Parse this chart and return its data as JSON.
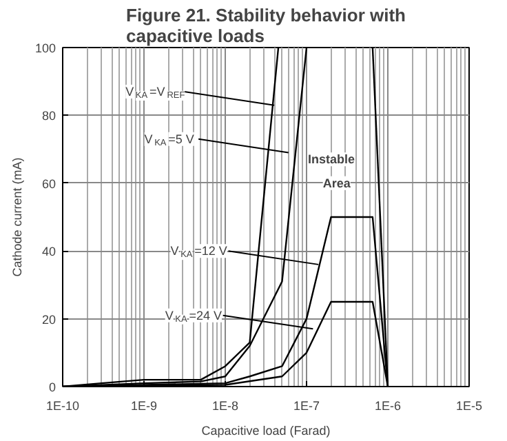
{
  "chart_data": {
    "type": "line",
    "title": "Figure 21. Stability behavior with capacitive loads",
    "xlabel": "Capacitive load (Farad)",
    "ylabel": "Cathode current (mA)",
    "log": "x",
    "grid": true,
    "xlim": [
      1e-10,
      1e-05
    ],
    "ylim": [
      0,
      100
    ],
    "xticks": [
      {
        "value": 1e-10,
        "label": "1E-10"
      },
      {
        "value": 1e-09,
        "label": "1E-9"
      },
      {
        "value": 1e-08,
        "label": "1E-8"
      },
      {
        "value": 1e-07,
        "label": "1E-7"
      },
      {
        "value": 1e-06,
        "label": "1E-6"
      },
      {
        "value": 1e-05,
        "label": "1E-5"
      }
    ],
    "yticks": [
      0,
      20,
      40,
      60,
      80,
      100
    ],
    "series": [
      {
        "color": "#000000",
        "x": [
          1e-10,
          3e-10,
          1e-09,
          5e-09,
          1e-08,
          2e-08,
          4.5e-08
        ],
        "values": [
          0,
          1,
          2,
          2,
          6,
          13,
          100
        ]
      },
      {
        "color": "#000000",
        "x": [
          1e-10,
          1e-09,
          5e-09,
          1e-08,
          2e-08,
          5e-08,
          1e-07
        ],
        "values": [
          0,
          1,
          1.5,
          3,
          12,
          31,
          100
        ]
      },
      {
        "color": "#000000",
        "x": [
          6.5e-07,
          1e-06
        ],
        "values": [
          100,
          0
        ]
      },
      {
        "color": "#000000",
        "x": [
          1e-10,
          1e-08,
          2e-08,
          5e-08,
          1e-07,
          2e-07,
          6.5e-07,
          1e-06
        ],
        "values": [
          0,
          1,
          3,
          6,
          20,
          50,
          50,
          0
        ]
      },
      {
        "color": "#000000",
        "x": [
          1e-10,
          1e-08,
          5e-08,
          1e-07,
          2e-07,
          6.5e-07,
          1e-06
        ],
        "values": [
          0,
          0.5,
          3,
          10,
          25,
          25,
          0
        ]
      }
    ],
    "annotations": [
      {
        "text": "V$_{KA}$=V$_{REF}$",
        "x": 4e-08,
        "y": 83
      },
      {
        "text": "V$_{KA}$=5 V",
        "x": 6e-08,
        "y": 69
      },
      {
        "text": "V$_{KA}$=12 V",
        "x": 1.4e-07,
        "y": 36
      },
      {
        "text": "V$_{KA}$=24 V",
        "x": 1.2e-07,
        "y": 17
      },
      "Instable Area"
    ]
  }
}
